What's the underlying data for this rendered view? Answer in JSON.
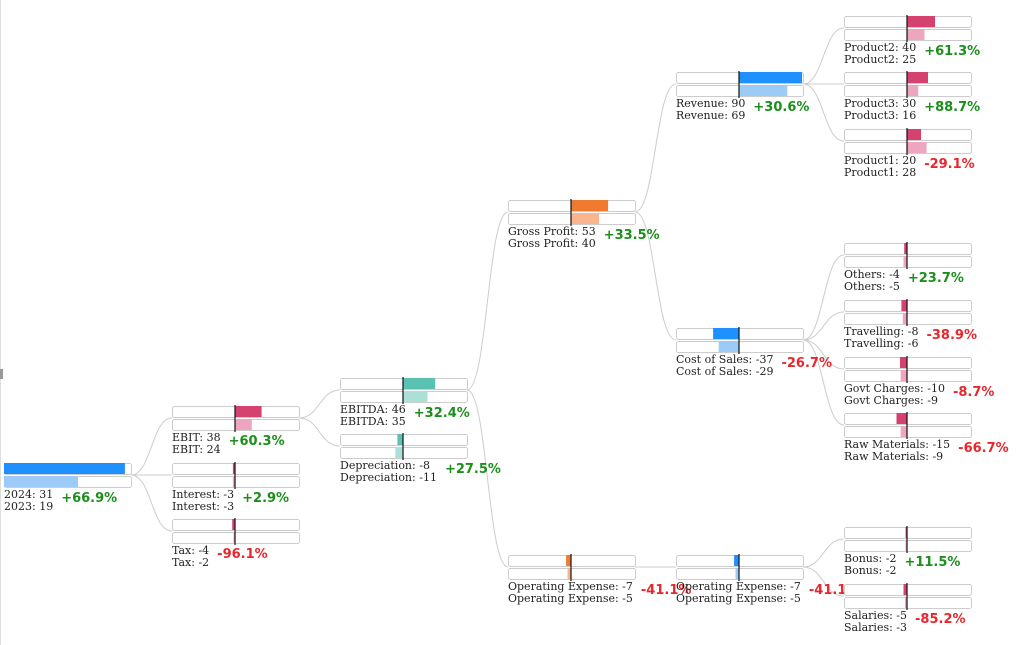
{
  "colors": {
    "blue_cur": "#1e90ff",
    "blue_prev": "#9dcbf7",
    "pink_cur": "#d6426f",
    "pink_prev": "#eea5bf",
    "teal_cur": "#5bc1b3",
    "teal_prev": "#abe0d8",
    "orange_cur": "#f07a30",
    "orange_prev": "#fbb58e",
    "positive": "#1a8f1a",
    "negative": "#e8262b",
    "link": "#cccccc",
    "frame": "#cccccc"
  },
  "chart_data": {
    "type": "decomposition-tree",
    "years": [
      "2024",
      "2023"
    ],
    "nodes": [
      {
        "id": "root",
        "label": "2024: 31",
        "label2": "2023: 19",
        "cur": 31,
        "prev": 19,
        "change": "+66.9%",
        "sign": "pos",
        "scheme": "blue",
        "parent": null
      },
      {
        "id": "ebit",
        "label": "EBIT: 38",
        "label2": "EBIT: 24",
        "cur": 38,
        "prev": 24,
        "change": "+60.3%",
        "sign": "pos",
        "scheme": "pink",
        "parent": "root"
      },
      {
        "id": "interest",
        "label": "Interest: -3",
        "label2": "Interest: -3",
        "cur": -3,
        "prev": -3,
        "change": "+2.9%",
        "sign": "pos",
        "scheme": "pink",
        "parent": "root"
      },
      {
        "id": "tax",
        "label": "Tax: -4",
        "label2": "Tax: -2",
        "cur": -4,
        "prev": -2,
        "change": "-96.1%",
        "sign": "neg",
        "scheme": "pink",
        "parent": "root"
      },
      {
        "id": "ebitda",
        "label": "EBITDA: 46",
        "label2": "EBITDA: 35",
        "cur": 46,
        "prev": 35,
        "change": "+32.4%",
        "sign": "pos",
        "scheme": "teal",
        "parent": "ebit"
      },
      {
        "id": "depr",
        "label": "Depreciation: -8",
        "label2": "Depreciation: -11",
        "cur": -8,
        "prev": -11,
        "change": "+27.5%",
        "sign": "pos",
        "scheme": "teal",
        "parent": "ebit"
      },
      {
        "id": "gp",
        "label": "Gross Profit: 53",
        "label2": "Gross Profit: 40",
        "cur": 53,
        "prev": 40,
        "change": "+33.5%",
        "sign": "pos",
        "scheme": "orange",
        "parent": "ebitda"
      },
      {
        "id": "opex",
        "label": "Operating Expense: -7",
        "label2": "Operating Expense: -5",
        "cur": -7,
        "prev": -5,
        "change": "-41.1%",
        "sign": "neg",
        "scheme": "orange",
        "parent": "ebitda"
      },
      {
        "id": "rev",
        "label": "Revenue: 90",
        "label2": "Revenue: 69",
        "cur": 90,
        "prev": 69,
        "change": "+30.6%",
        "sign": "pos",
        "scheme": "blue",
        "parent": "gp"
      },
      {
        "id": "cos",
        "label": "Cost of Sales: -37",
        "label2": "Cost of Sales: -29",
        "cur": -37,
        "prev": -29,
        "change": "-26.7%",
        "sign": "neg",
        "scheme": "blue",
        "parent": "gp"
      },
      {
        "id": "opex2",
        "label": "Operating Expense: -7",
        "label2": "Operating Expense: -5",
        "cur": -7,
        "prev": -5,
        "change": "-41.1%",
        "sign": "neg",
        "scheme": "blue",
        "parent": "opex"
      },
      {
        "id": "p2",
        "label": "Product2: 40",
        "label2": "Product2: 25",
        "cur": 40,
        "prev": 25,
        "change": "+61.3%",
        "sign": "pos",
        "scheme": "pink",
        "parent": "rev"
      },
      {
        "id": "p3",
        "label": "Product3: 30",
        "label2": "Product3: 16",
        "cur": 30,
        "prev": 16,
        "change": "+88.7%",
        "sign": "pos",
        "scheme": "pink",
        "parent": "rev"
      },
      {
        "id": "p1",
        "label": "Product1: 20",
        "label2": "Product1: 28",
        "cur": 20,
        "prev": 28,
        "change": "-29.1%",
        "sign": "neg",
        "scheme": "pink",
        "parent": "rev"
      },
      {
        "id": "others",
        "label": "Others: -4",
        "label2": "Others: -5",
        "cur": -4,
        "prev": -5,
        "change": "+23.7%",
        "sign": "pos",
        "scheme": "pink",
        "parent": "cos"
      },
      {
        "id": "travel",
        "label": "Travelling: -8",
        "label2": "Travelling: -6",
        "cur": -8,
        "prev": -6,
        "change": "-38.9%",
        "sign": "neg",
        "scheme": "pink",
        "parent": "cos"
      },
      {
        "id": "govt",
        "label": "Govt Charges: -10",
        "label2": "Govt Charges: -9",
        "cur": -10,
        "prev": -9,
        "change": "-8.7%",
        "sign": "neg",
        "scheme": "pink",
        "parent": "cos"
      },
      {
        "id": "raw",
        "label": "Raw Materials: -15",
        "label2": "Raw Materials: -9",
        "cur": -15,
        "prev": -9,
        "change": "-66.7%",
        "sign": "neg",
        "scheme": "pink",
        "parent": "cos"
      },
      {
        "id": "bonus",
        "label": "Bonus: -2",
        "label2": "Bonus: -2",
        "cur": -2,
        "prev": -2,
        "change": "+11.5%",
        "sign": "pos",
        "scheme": "pink",
        "parent": "opex2"
      },
      {
        "id": "salaries",
        "label": "Salaries: -5",
        "label2": "Salaries: -3",
        "cur": -5,
        "prev": -3,
        "change": "-85.2%",
        "sign": "neg",
        "scheme": "pink",
        "parent": "opex2"
      }
    ]
  }
}
